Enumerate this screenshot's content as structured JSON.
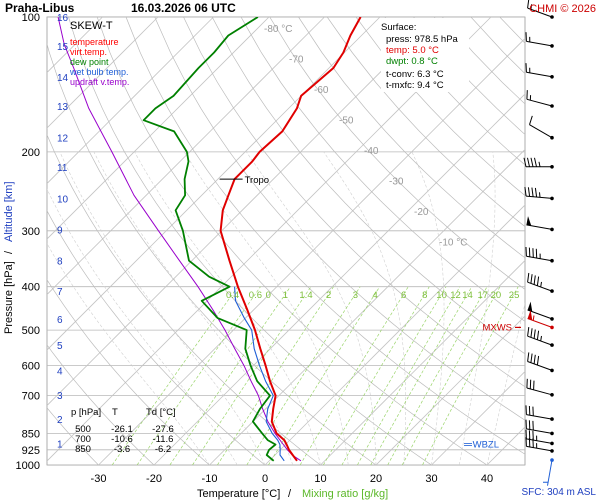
{
  "chart_data": {
    "type": "line",
    "station": "Praha-Libus",
    "datetime": "16.03.2026 06 UTC",
    "credit": "CHMI © 2026",
    "title": "SKEW-T",
    "xlabel_prefix": "Temperature [°C]",
    "xlabel_sep": "/",
    "xlabel_mixing": "Mixing ratio [g/kg]",
    "ylabel_pressure": "Pressure [hPa]",
    "ylabel_sep": "/",
    "ylabel_altitude": "Altitude [km]",
    "sfc_label": "SFC: 304 m ASL",
    "tropo_label": "Tropo",
    "mxws_label": "MXWS",
    "wbzl_label": "WBZL",
    "pressure_ticks": [
      100,
      200,
      300,
      400,
      500,
      600,
      700,
      850,
      925,
      1000
    ],
    "pressure_tick_labels": [
      "100",
      "200",
      "300",
      "400",
      "500",
      "600",
      "700",
      "850",
      "925",
      "1000"
    ],
    "altitude_ticks": [
      {
        "km": "16",
        "p": 100
      },
      {
        "km": "15",
        "p": 116
      },
      {
        "km": "14",
        "p": 136
      },
      {
        "km": "13",
        "p": 158
      },
      {
        "km": "12",
        "p": 186
      },
      {
        "km": "11",
        "p": 216
      },
      {
        "km": "10",
        "p": 254
      },
      {
        "km": "9",
        "p": 298
      },
      {
        "km": "8",
        "p": 350
      },
      {
        "km": "7",
        "p": 409
      },
      {
        "km": "6",
        "p": 472
      },
      {
        "km": "5",
        "p": 540
      },
      {
        "km": "4",
        "p": 615
      },
      {
        "km": "3",
        "p": 697
      },
      {
        "km": "2",
        "p": 790
      },
      {
        "km": "1",
        "p": 895
      }
    ],
    "temperature_ticks": [
      -30,
      -20,
      -10,
      0,
      10,
      20,
      30,
      40
    ],
    "temperature_tick_labels": [
      "-30",
      "-20",
      "-10",
      "0",
      "10",
      "20",
      "30",
      "40"
    ],
    "skew_labels": [
      {
        "text": "-80 °C",
        "t": -80
      },
      {
        "text": "-70",
        "t": -70
      },
      {
        "text": "-60",
        "t": -60
      },
      {
        "text": "-50",
        "t": -50
      },
      {
        "text": "-40",
        "t": -40
      },
      {
        "text": "-30",
        "t": -30
      },
      {
        "text": "-20",
        "t": -20
      },
      {
        "text": "-10 °C",
        "t": -10
      }
    ],
    "mixing_ratio_values": [
      0.4,
      0.6,
      1,
      1.4,
      2,
      3,
      4,
      6,
      8,
      10,
      12,
      14,
      17,
      20,
      25
    ],
    "mixing_ratio_labels": [
      "0.4",
      "0.6",
      "1",
      "1.4",
      "2",
      "3",
      "4",
      "6",
      "8",
      "10",
      "12",
      "14",
      "17",
      "20",
      "25"
    ],
    "mixing_label_zero": "0",
    "legend": [
      {
        "label": "temperature",
        "color": "#ff0000"
      },
      {
        "label": "virt.temp.",
        "color": "#ff0000"
      },
      {
        "label": "dew point",
        "color": "#008000"
      },
      {
        "label": "wet bulb temp.",
        "color": "#1f5fd6"
      },
      {
        "label": "updraft v.temp.",
        "color": "#9900cc"
      }
    ],
    "surface_info": {
      "heading": "Surface:",
      "press": "press: 978.5 hPa",
      "temp": "temp: 5.0 °C",
      "dwpt": "dwpt: 0.8 °C",
      "tconv": "t-conv: 6.3 °C",
      "tmxfc": "t-mxfc: 9.4 °C"
    },
    "table": {
      "header": [
        "p [hPa]",
        "T",
        "Td [°C]"
      ],
      "rows": [
        [
          "500",
          "-26.1",
          "-27.6"
        ],
        [
          "700",
          "-10.6",
          "-11.6"
        ],
        [
          "850",
          "-3.6",
          "-6.2"
        ]
      ]
    },
    "tropopause_p": 230,
    "mxws_p": 493,
    "wbzl_p": 900,
    "series": [
      {
        "name": "temperature",
        "color": "#e00000",
        "points": [
          [
            978.5,
            5.0
          ],
          [
            950,
            3.2
          ],
          [
            925,
            1.6
          ],
          [
            900,
            0.2
          ],
          [
            880,
            -1.0
          ],
          [
            850,
            -3.6
          ],
          [
            800,
            -6.6
          ],
          [
            750,
            -8.6
          ],
          [
            700,
            -10.6
          ],
          [
            650,
            -14.2
          ],
          [
            600,
            -17.8
          ],
          [
            550,
            -21.8
          ],
          [
            500,
            -26.1
          ],
          [
            450,
            -31.2
          ],
          [
            400,
            -37.0
          ],
          [
            350,
            -43.2
          ],
          [
            300,
            -50.2
          ],
          [
            270,
            -53.5
          ],
          [
            250,
            -55.2
          ],
          [
            230,
            -57.0
          ],
          [
            210,
            -57.0
          ],
          [
            200,
            -57.4
          ],
          [
            180,
            -57.0
          ],
          [
            160,
            -58.5
          ],
          [
            150,
            -60.0
          ],
          [
            130,
            -59.2
          ],
          [
            120,
            -60.2
          ],
          [
            110,
            -62.0
          ],
          [
            100,
            -63.5
          ]
        ]
      },
      {
        "name": "dew point",
        "color": "#008000",
        "points": [
          [
            978.5,
            0.8
          ],
          [
            950,
            -1.5
          ],
          [
            925,
            -2.0
          ],
          [
            900,
            -1.8
          ],
          [
            880,
            -4.0
          ],
          [
            850,
            -6.2
          ],
          [
            800,
            -10.0
          ],
          [
            750,
            -11.0
          ],
          [
            700,
            -11.6
          ],
          [
            650,
            -16.5
          ],
          [
            600,
            -20.5
          ],
          [
            550,
            -24.5
          ],
          [
            500,
            -27.6
          ],
          [
            470,
            -35.0
          ],
          [
            430,
            -41.0
          ],
          [
            400,
            -38.5
          ],
          [
            380,
            -44.0
          ],
          [
            350,
            -50.5
          ],
          [
            300,
            -57.0
          ],
          [
            270,
            -62.0
          ],
          [
            250,
            -63.0
          ],
          [
            230,
            -66.0
          ],
          [
            210,
            -68.5
          ],
          [
            200,
            -70.5
          ],
          [
            180,
            -76.5
          ],
          [
            170,
            -84.0
          ],
          [
            160,
            -84.0
          ],
          [
            150,
            -83.0
          ],
          [
            130,
            -83.5
          ],
          [
            120,
            -83.5
          ],
          [
            110,
            -84.0
          ],
          [
            100,
            -82.0
          ]
        ]
      },
      {
        "name": "wet bulb temp.",
        "color": "#1f5fd6",
        "points": [
          [
            978.5,
            2.7
          ],
          [
            950,
            0.9
          ],
          [
            925,
            0.0
          ],
          [
            900,
            -1.0
          ],
          [
            880,
            -2.2
          ],
          [
            850,
            -4.4
          ],
          [
            800,
            -7.6
          ],
          [
            750,
            -9.6
          ],
          [
            700,
            -11.0
          ],
          [
            650,
            -15.0
          ],
          [
            600,
            -18.9
          ],
          [
            550,
            -22.9
          ],
          [
            500,
            -26.7
          ],
          [
            470,
            -30.2
          ],
          [
            430,
            -34.9
          ],
          [
            400,
            -37.6
          ]
        ]
      },
      {
        "name": "updraft v.temp.",
        "color": "#9900cc",
        "points": [
          [
            978.5,
            5.7
          ],
          [
            950,
            3.1
          ],
          [
            925,
            1.3
          ],
          [
            900,
            -0.4
          ],
          [
            850,
            -3.9
          ],
          [
            800,
            -7.3
          ],
          [
            750,
            -10.5
          ],
          [
            700,
            -13.7
          ],
          [
            650,
            -17.6
          ],
          [
            600,
            -21.7
          ],
          [
            550,
            -26.4
          ],
          [
            500,
            -31.5
          ],
          [
            450,
            -37.4
          ],
          [
            400,
            -44.2
          ],
          [
            350,
            -52.2
          ],
          [
            300,
            -61.4
          ],
          [
            250,
            -72.2
          ],
          [
            200,
            -84.0
          ],
          [
            160,
            -96.0
          ],
          [
            130,
            -106.0
          ],
          [
            115,
            -112.0
          ],
          [
            100,
            -118.0
          ]
        ]
      }
    ],
    "winds": [
      {
        "p": 100,
        "dir": 290,
        "spd": 15
      },
      {
        "p": 116,
        "dir": 280,
        "spd": 15
      },
      {
        "p": 136,
        "dir": 280,
        "spd": 15
      },
      {
        "p": 158,
        "dir": 285,
        "spd": 15
      },
      {
        "p": 186,
        "dir": 300,
        "spd": 10
      },
      {
        "p": 216,
        "dir": 270,
        "spd": 45
      },
      {
        "p": 254,
        "dir": 275,
        "spd": 45
      },
      {
        "p": 298,
        "dir": 280,
        "spd": 50
      },
      {
        "p": 350,
        "dir": 280,
        "spd": 45
      },
      {
        "p": 409,
        "dir": 290,
        "spd": 45
      },
      {
        "p": 472,
        "dir": 290,
        "spd": 50
      },
      {
        "p": 493,
        "dir": 290,
        "spd": 55
      },
      {
        "p": 540,
        "dir": 290,
        "spd": 45
      },
      {
        "p": 615,
        "dir": 290,
        "spd": 40
      },
      {
        "p": 697,
        "dir": 285,
        "spd": 30
      },
      {
        "p": 790,
        "dir": 280,
        "spd": 30
      },
      {
        "p": 850,
        "dir": 280,
        "spd": 30
      },
      {
        "p": 895,
        "dir": 280,
        "spd": 35
      },
      {
        "p": 930,
        "dir": 280,
        "spd": 35
      },
      {
        "p": 975,
        "dir": 190,
        "spd": 5
      }
    ]
  }
}
